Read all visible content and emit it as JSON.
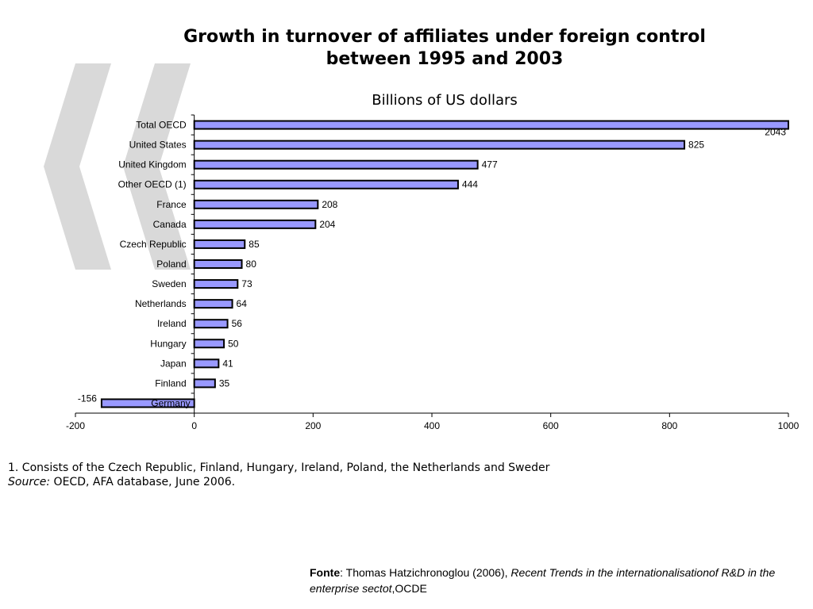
{
  "title_line1": "Growth in turnover of affiliates under foreign control",
  "title_line2": "between 1995 and 2003",
  "chart_data": {
    "type": "bar",
    "orientation": "horizontal",
    "title": "Growth in turnover of affiliates under foreign control between 1995 and 2003",
    "subtitle": "Billions of US dollars",
    "categories": [
      "Total OECD",
      "United States",
      "United Kingdom",
      "Other OECD (1)",
      "France",
      "Canada",
      "Czech Republic",
      "Poland",
      "Sweden",
      "Netherlands",
      "Ireland",
      "Hungary",
      "Japan",
      "Finland",
      "Germany"
    ],
    "values": [
      2043,
      825,
      477,
      444,
      208,
      204,
      85,
      80,
      73,
      64,
      56,
      50,
      41,
      35,
      -156
    ],
    "value_labels": [
      "2043",
      "825",
      "477",
      "444",
      "208",
      "204",
      "85",
      "80",
      "73",
      "64",
      "56",
      "50",
      "41",
      "35",
      "-156"
    ],
    "xlim": [
      -200,
      1000
    ],
    "xticks": [
      "-200",
      "0",
      "200",
      "400",
      "600",
      "800",
      "1000"
    ],
    "grid": false,
    "bar_color": "#9999ff",
    "bar_edge_color": "#000000"
  },
  "footnote_1": "1. Consists of the Czech Republic, Finland, Hungary, Ireland, Poland, the Netherlands and Sweder",
  "source_label": "Source:",
  "source_text": " OECD, AFA database, June 2006.",
  "fonte_label": "Fonte",
  "fonte_text": ": Thomas Hatzichronoglou (2006), ",
  "fonte_italic": "Recent Trends in the internationalisationof R&D in the enterprise sectot",
  "fonte_end": ",OCDE",
  "watermark_color": "#d9d9d9"
}
